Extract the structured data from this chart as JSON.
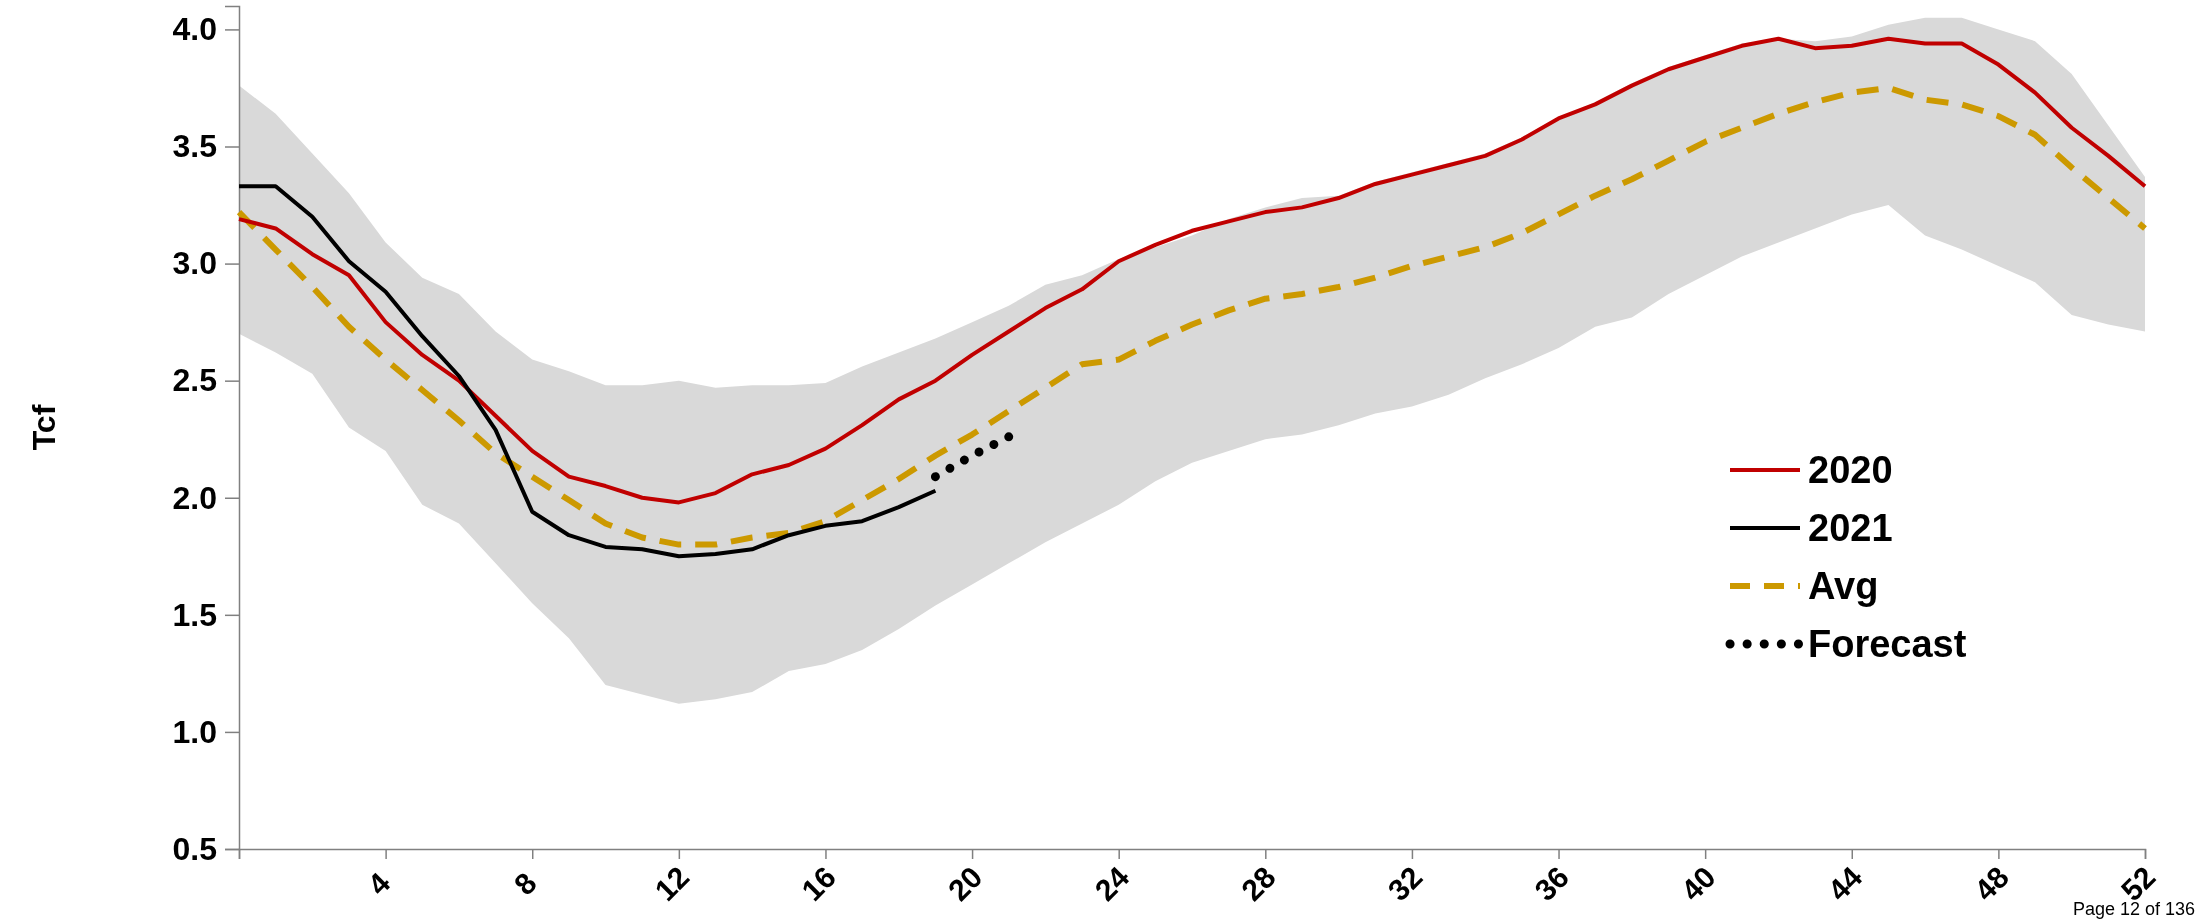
{
  "chart_data": {
    "type": "line",
    "ylabel": "Tcf",
    "xlim": [
      0,
      52
    ],
    "ylim": [
      0.5,
      4.1
    ],
    "xticks": [
      {
        "value": 0,
        "label": null
      },
      4,
      8,
      12,
      16,
      20,
      24,
      28,
      32,
      36,
      40,
      44,
      48,
      52
    ],
    "yticks": [
      0.5,
      {
        "value": 1,
        "label": "1.0"
      },
      1.5,
      {
        "value": 2,
        "label": "2.0"
      },
      2.5,
      {
        "value": 3,
        "label": "3.0"
      },
      3.5,
      {
        "value": 4,
        "label": "4.0"
      }
    ],
    "x": [
      0,
      1,
      2,
      3,
      4,
      5,
      6,
      7,
      8,
      9,
      10,
      11,
      12,
      13,
      14,
      15,
      16,
      17,
      18,
      19,
      20,
      21,
      22,
      23,
      24,
      25,
      26,
      27,
      28,
      29,
      30,
      31,
      32,
      33,
      34,
      35,
      36,
      37,
      38,
      39,
      40,
      41,
      42,
      43,
      44,
      45,
      46,
      47,
      48,
      49,
      50,
      51,
      52
    ],
    "series": [
      {
        "name": "Avg",
        "color": "#cc9900",
        "line_style": "dashed",
        "values": [
          3.22,
          3.06,
          2.9,
          2.73,
          2.59,
          2.46,
          2.33,
          2.19,
          2.09,
          1.99,
          1.89,
          1.83,
          1.8,
          1.8,
          1.83,
          1.85,
          1.9,
          1.99,
          2.08,
          2.18,
          2.27,
          2.37,
          2.47,
          2.57,
          2.59,
          2.67,
          2.74,
          2.8,
          2.85,
          2.87,
          2.9,
          2.94,
          2.99,
          3.03,
          3.07,
          3.13,
          3.21,
          3.29,
          3.36,
          3.44,
          3.52,
          3.58,
          3.64,
          3.69,
          3.73,
          3.75,
          3.7,
          3.68,
          3.63,
          3.55,
          3.41,
          3.28,
          3.15
        ],
        "upper": [
          3.76,
          3.64,
          3.47,
          3.3,
          3.09,
          2.94,
          2.87,
          2.71,
          2.59,
          2.54,
          2.48,
          2.48,
          2.5,
          2.47,
          2.48,
          2.48,
          2.49,
          2.56,
          2.62,
          2.68,
          2.75,
          2.82,
          2.91,
          2.95,
          3.02,
          3.07,
          3.12,
          3.19,
          3.24,
          3.28,
          3.29,
          3.35,
          3.39,
          3.43,
          3.47,
          3.54,
          3.62,
          3.69,
          3.77,
          3.84,
          3.89,
          3.94,
          3.96,
          3.95,
          3.97,
          4.02,
          4.05,
          4.05,
          4.0,
          3.95,
          3.81,
          3.59,
          3.37
        ],
        "lower": [
          2.7,
          2.62,
          2.53,
          2.3,
          2.2,
          1.97,
          1.89,
          1.72,
          1.55,
          1.4,
          1.2,
          1.16,
          1.12,
          1.14,
          1.17,
          1.26,
          1.29,
          1.35,
          1.44,
          1.54,
          1.63,
          1.72,
          1.81,
          1.89,
          1.97,
          2.07,
          2.15,
          2.2,
          2.25,
          2.27,
          2.31,
          2.36,
          2.39,
          2.44,
          2.51,
          2.57,
          2.64,
          2.73,
          2.77,
          2.87,
          2.95,
          3.03,
          3.09,
          3.15,
          3.21,
          3.25,
          3.12,
          3.06,
          2.99,
          2.92,
          2.78,
          2.74,
          2.71
        ]
      },
      {
        "name": "2020",
        "color": "#c00000",
        "line_style": "solid",
        "values": [
          3.19,
          3.15,
          3.04,
          2.95,
          2.75,
          2.61,
          2.5,
          2.35,
          2.2,
          2.09,
          2.05,
          2.0,
          1.98,
          2.02,
          2.1,
          2.14,
          2.21,
          2.31,
          2.42,
          2.5,
          2.61,
          2.71,
          2.81,
          2.89,
          3.01,
          3.08,
          3.14,
          3.18,
          3.22,
          3.24,
          3.28,
          3.34,
          3.38,
          3.42,
          3.46,
          3.53,
          3.62,
          3.68,
          3.76,
          3.83,
          3.88,
          3.93,
          3.96,
          3.92,
          3.93,
          3.96,
          3.94,
          3.94,
          3.85,
          3.73,
          3.58,
          3.46,
          3.33
        ]
      },
      {
        "name": "2021",
        "color": "#000000",
        "line_style": "solid",
        "x": [
          0,
          1,
          2,
          3,
          4,
          5,
          6,
          7,
          8,
          9,
          10,
          11,
          12,
          13,
          14,
          15,
          16,
          17,
          18,
          19
        ],
        "values": [
          3.33,
          3.33,
          3.2,
          3.01,
          2.88,
          2.69,
          2.52,
          2.29,
          1.94,
          1.84,
          1.79,
          1.78,
          1.75,
          1.76,
          1.78,
          1.84,
          1.88,
          1.9,
          1.96,
          2.03
        ]
      },
      {
        "name": "Forecast",
        "color": "#000000",
        "line_style": "dotted",
        "x": [
          19,
          20,
          21
        ],
        "values": [
          2.09,
          2.18,
          2.26
        ]
      }
    ],
    "legend": "right",
    "grid": false,
    "marker": "none",
    "annotations": [
      "Page 12 of 136"
    ]
  }
}
